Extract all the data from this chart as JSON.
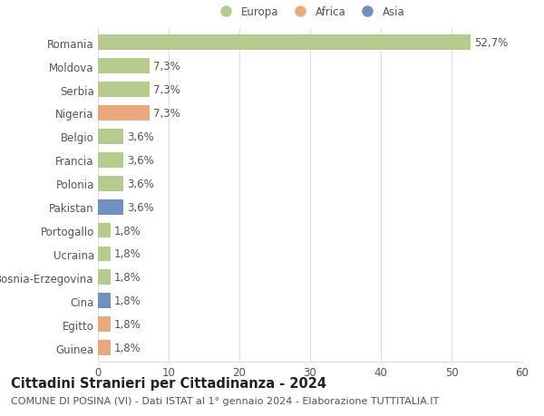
{
  "categories": [
    "Romania",
    "Moldova",
    "Serbia",
    "Nigeria",
    "Belgio",
    "Francia",
    "Polonia",
    "Pakistan",
    "Portogallo",
    "Ucraina",
    "Bosnia-Erzegovina",
    "Cina",
    "Egitto",
    "Guinea"
  ],
  "values": [
    52.7,
    7.3,
    7.3,
    7.3,
    3.6,
    3.6,
    3.6,
    3.6,
    1.8,
    1.8,
    1.8,
    1.8,
    1.8,
    1.8
  ],
  "labels": [
    "52,7%",
    "7,3%",
    "7,3%",
    "7,3%",
    "3,6%",
    "3,6%",
    "3,6%",
    "3,6%",
    "1,8%",
    "1,8%",
    "1,8%",
    "1,8%",
    "1,8%",
    "1,8%"
  ],
  "continents": [
    "Europa",
    "Europa",
    "Europa",
    "Africa",
    "Europa",
    "Europa",
    "Europa",
    "Asia",
    "Europa",
    "Europa",
    "Europa",
    "Asia",
    "Africa",
    "Africa"
  ],
  "colors": {
    "Europa": "#b5cc8e",
    "Africa": "#e8a97e",
    "Asia": "#7090c0"
  },
  "legend_order": [
    "Europa",
    "Africa",
    "Asia"
  ],
  "legend_colors": {
    "Europa": "#b5cc8e",
    "Africa": "#e8a97e",
    "Asia": "#7090c0"
  },
  "xlim": [
    0,
    60
  ],
  "xticks": [
    0,
    10,
    20,
    30,
    40,
    50,
    60
  ],
  "title": "Cittadini Stranieri per Cittadinanza - 2024",
  "subtitle": "COMUNE DI POSINA (VI) - Dati ISTAT al 1° gennaio 2024 - Elaborazione TUTTITALIA.IT",
  "background_color": "#ffffff",
  "grid_color": "#dddddd",
  "bar_height": 0.65,
  "label_fontsize": 8.5,
  "tick_fontsize": 8.5,
  "title_fontsize": 10.5,
  "subtitle_fontsize": 8.0
}
